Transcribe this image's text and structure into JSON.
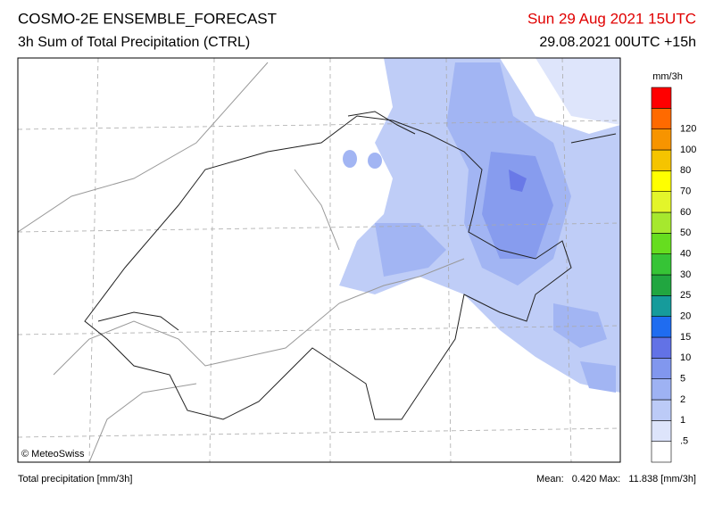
{
  "header": {
    "title": "COSMO-2E ENSEMBLE_FORECAST",
    "subtitle": "3h Sum of Total Precipitation (CTRL)",
    "valid_time": "Sun 29 Aug 2021 15UTC",
    "run_time": "29.08.2021 00UTC +15h"
  },
  "map": {
    "credit": "© MeteoSwiss"
  },
  "legend": {
    "unit": "mm/3h",
    "labels": [
      ".5",
      "1",
      "2",
      "5",
      "10",
      "15",
      "20",
      "25",
      "30",
      "40",
      "50",
      "60",
      "70",
      "80",
      "100",
      "120"
    ],
    "colors": [
      "#ffffff",
      "#dde4fb",
      "#bccbf7",
      "#9eb2f3",
      "#8197ee",
      "#6272e6",
      "#1f6cf0",
      "#169b9b",
      "#21a640",
      "#36c436",
      "#66dd1f",
      "#a6e82e",
      "#e3f52a",
      "#ffff00",
      "#f5c400",
      "#f79400",
      "#ff6a00",
      "#ff0000"
    ]
  },
  "footer": {
    "left": "Total precipitation [mm/3h]",
    "right": "Mean:   0.420 Max:   11.838 [mm/3h]"
  }
}
